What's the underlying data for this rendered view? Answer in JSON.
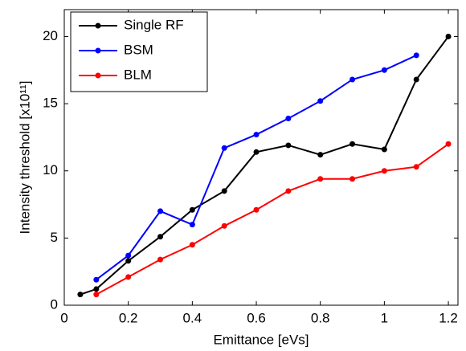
{
  "chart_data": {
    "type": "line",
    "xlabel": "Emittance [eVs]",
    "ylabel": "Intensity threshold [x10¹¹]",
    "xlim": [
      0,
      1.23
    ],
    "xticks": [
      0,
      0.2,
      0.4,
      0.6,
      0.8,
      1,
      1.2
    ],
    "ylim": [
      0,
      22
    ],
    "yticks": [
      0,
      5,
      10,
      15,
      20
    ],
    "grid": false,
    "legend": "top-left",
    "series": [
      {
        "name": "Single RF",
        "color": "#000000",
        "x": [
          0.05,
          0.1,
          0.2,
          0.3,
          0.4,
          0.5,
          0.6,
          0.7,
          0.8,
          0.9,
          1.0,
          1.1,
          1.2
        ],
        "values": [
          0.8,
          1.2,
          3.3,
          5.1,
          7.1,
          8.5,
          11.4,
          11.9,
          11.2,
          12.0,
          11.6,
          16.8,
          20.0
        ]
      },
      {
        "name": "BSM",
        "color": "#0000ff",
        "x": [
          0.1,
          0.2,
          0.3,
          0.4,
          0.5,
          0.6,
          0.7,
          0.8,
          0.9,
          1.0,
          1.1
        ],
        "values": [
          1.9,
          3.7,
          7.0,
          6.0,
          11.7,
          12.7,
          13.9,
          15.2,
          16.8,
          17.5,
          18.6
        ]
      },
      {
        "name": "BLM",
        "color": "#ff0000",
        "x": [
          0.1,
          0.2,
          0.3,
          0.4,
          0.5,
          0.6,
          0.7,
          0.8,
          0.9,
          1.0,
          1.1,
          1.2
        ],
        "values": [
          0.8,
          2.1,
          3.4,
          4.5,
          5.9,
          7.1,
          8.5,
          9.4,
          9.4,
          10.0,
          10.3,
          12.0
        ]
      }
    ]
  }
}
